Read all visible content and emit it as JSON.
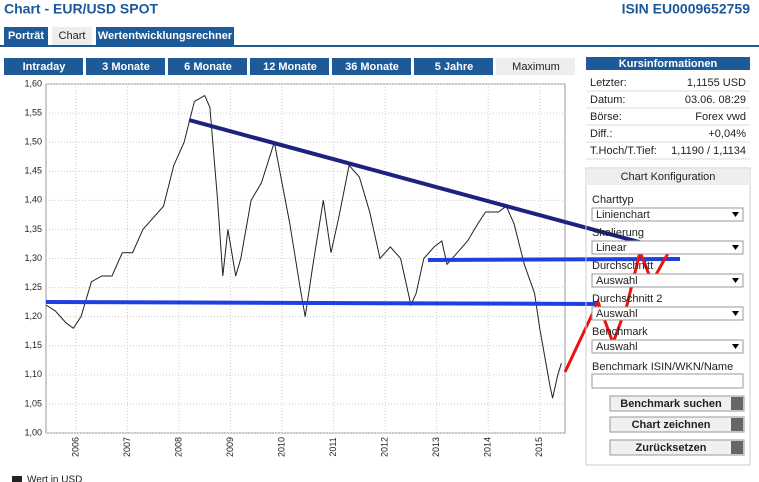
{
  "ui": {
    "header": {
      "title": "Chart - EUR/USD SPOT",
      "isin": "ISIN EU0009652759"
    },
    "tabs": [
      "Porträt",
      "Chart",
      "Wertentwicklungsrechner"
    ],
    "period_tabs": [
      "Intraday",
      "3 Monate",
      "6 Monate",
      "12 Monate",
      "36 Monate",
      "5 Jahre",
      "Maximum"
    ],
    "kurs": {
      "title": "Kursinformationen",
      "rows": [
        [
          "Letzter:",
          "1,1155 USD"
        ],
        [
          "Datum:",
          "03.06. 08:29"
        ],
        [
          "Börse:",
          "Forex vwd"
        ],
        [
          "Diff.:",
          "+0,04%"
        ],
        [
          "T.Hoch/T.Tief:",
          "1,1190 / 1,1134"
        ]
      ]
    },
    "config": {
      "title": "Chart Konfiguration",
      "fields": [
        {
          "label": "Charttyp",
          "value": "Linienchart"
        },
        {
          "label": "Skalierung",
          "value": "Linear"
        },
        {
          "label": "Durchschnitt",
          "value": "Auswahl"
        },
        {
          "label": "Durchschnitt 2",
          "value": "Auswahl"
        },
        {
          "label": "Benchmark",
          "value": "Auswahl"
        }
      ],
      "input_label": "Benchmark ISIN/WKN/Name",
      "buttons": [
        "Benchmark suchen",
        "Chart zeichnen",
        "Zurücksetzen"
      ]
    }
  },
  "chart_data": {
    "type": "line",
    "x": [
      2005.42,
      2005.6,
      2005.8,
      2005.95,
      2006.1,
      2006.3,
      2006.5,
      2006.7,
      2006.9,
      2007.1,
      2007.3,
      2007.5,
      2007.7,
      2007.9,
      2008.1,
      2008.3,
      2008.5,
      2008.6,
      2008.75,
      2008.85,
      2008.95,
      2009.1,
      2009.2,
      2009.4,
      2009.6,
      2009.85,
      2010.0,
      2010.15,
      2010.35,
      2010.45,
      2010.6,
      2010.8,
      2010.95,
      2011.1,
      2011.3,
      2011.5,
      2011.7,
      2011.9,
      2012.1,
      2012.3,
      2012.5,
      2012.6,
      2012.75,
      2012.95,
      2013.1,
      2013.2,
      2013.4,
      2013.6,
      2013.8,
      2013.95,
      2014.2,
      2014.35,
      2014.5,
      2014.7,
      2014.9,
      2015.0,
      2015.1,
      2015.2,
      2015.25,
      2015.35,
      2015.42
    ],
    "series": [
      {
        "name": "Wert in USD",
        "color": "#222222",
        "values": [
          1.22,
          1.21,
          1.19,
          1.18,
          1.2,
          1.26,
          1.27,
          1.27,
          1.31,
          1.31,
          1.35,
          1.37,
          1.39,
          1.46,
          1.5,
          1.57,
          1.58,
          1.56,
          1.4,
          1.27,
          1.35,
          1.27,
          1.3,
          1.4,
          1.43,
          1.5,
          1.43,
          1.36,
          1.25,
          1.2,
          1.29,
          1.4,
          1.31,
          1.37,
          1.46,
          1.44,
          1.38,
          1.3,
          1.32,
          1.3,
          1.22,
          1.24,
          1.3,
          1.32,
          1.33,
          1.29,
          1.31,
          1.33,
          1.36,
          1.38,
          1.38,
          1.39,
          1.36,
          1.29,
          1.24,
          1.18,
          1.13,
          1.08,
          1.06,
          1.1,
          1.12
        ]
      }
    ],
    "xlim": [
      2005.42,
      2015.49
    ],
    "xticks": [
      2006,
      2007,
      2008,
      2009,
      2010,
      2011,
      2012,
      2013,
      2014,
      2015
    ],
    "ylim": [
      1,
      1.6
    ],
    "yticks": [
      {
        "value": 1,
        "label": "1,00"
      },
      {
        "value": 1.05,
        "label": "1,05"
      },
      {
        "value": 1.1,
        "label": "1,10"
      },
      {
        "value": 1.15,
        "label": "1,15"
      },
      {
        "value": 1.2,
        "label": "1,20"
      },
      {
        "value": 1.25,
        "label": "1,25"
      },
      {
        "value": 1.3,
        "label": "1,30"
      },
      {
        "value": 1.35,
        "label": "1,35"
      },
      {
        "value": 1.4,
        "label": "1,40"
      },
      {
        "value": 1.45,
        "label": "1,45"
      },
      {
        "value": 1.5,
        "label": "1,50"
      },
      {
        "value": 1.55,
        "label": "1,55"
      },
      {
        "value": 1.6,
        "label": "1,60"
      }
    ],
    "grid": true
  }
}
